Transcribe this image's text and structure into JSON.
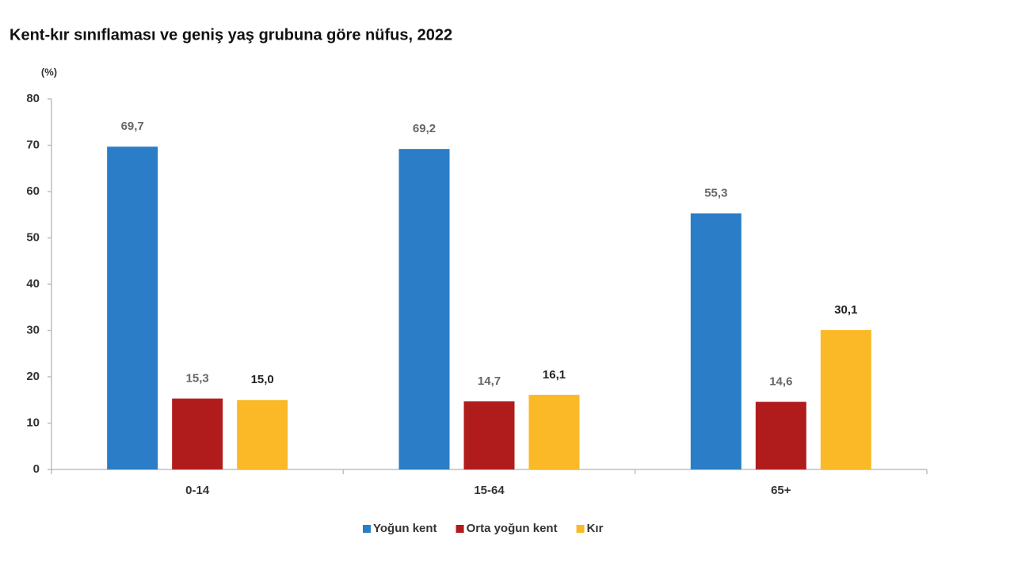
{
  "chart_data": {
    "type": "bar",
    "title": "Kent-kır sınıflaması ve geniş yaş grubuna göre nüfus, 2022",
    "y_label": "(%)",
    "categories": [
      "0-14",
      "15-64",
      "65+"
    ],
    "series": [
      {
        "name": "Yoğun kent",
        "color": "#2a7dc6",
        "values": [
          69.7,
          69.2,
          55.3
        ],
        "value_labels": [
          "69,7",
          "69,2",
          "55,3"
        ]
      },
      {
        "name": "Orta yoğun kent",
        "color": "#b01c1c",
        "values": [
          15.3,
          14.7,
          14.6
        ],
        "value_labels": [
          "15,3",
          "14,7",
          "14,6"
        ]
      },
      {
        "name": "Kır",
        "color": "#fbb928",
        "values": [
          15.0,
          16.1,
          30.1
        ],
        "value_labels": [
          "15,0",
          "16,1",
          "30,1"
        ]
      }
    ],
    "ylim": [
      0,
      80
    ],
    "yticks": [
      0,
      10,
      20,
      30,
      40,
      50,
      60,
      70,
      80
    ],
    "grid": false,
    "legend": "bottom"
  }
}
